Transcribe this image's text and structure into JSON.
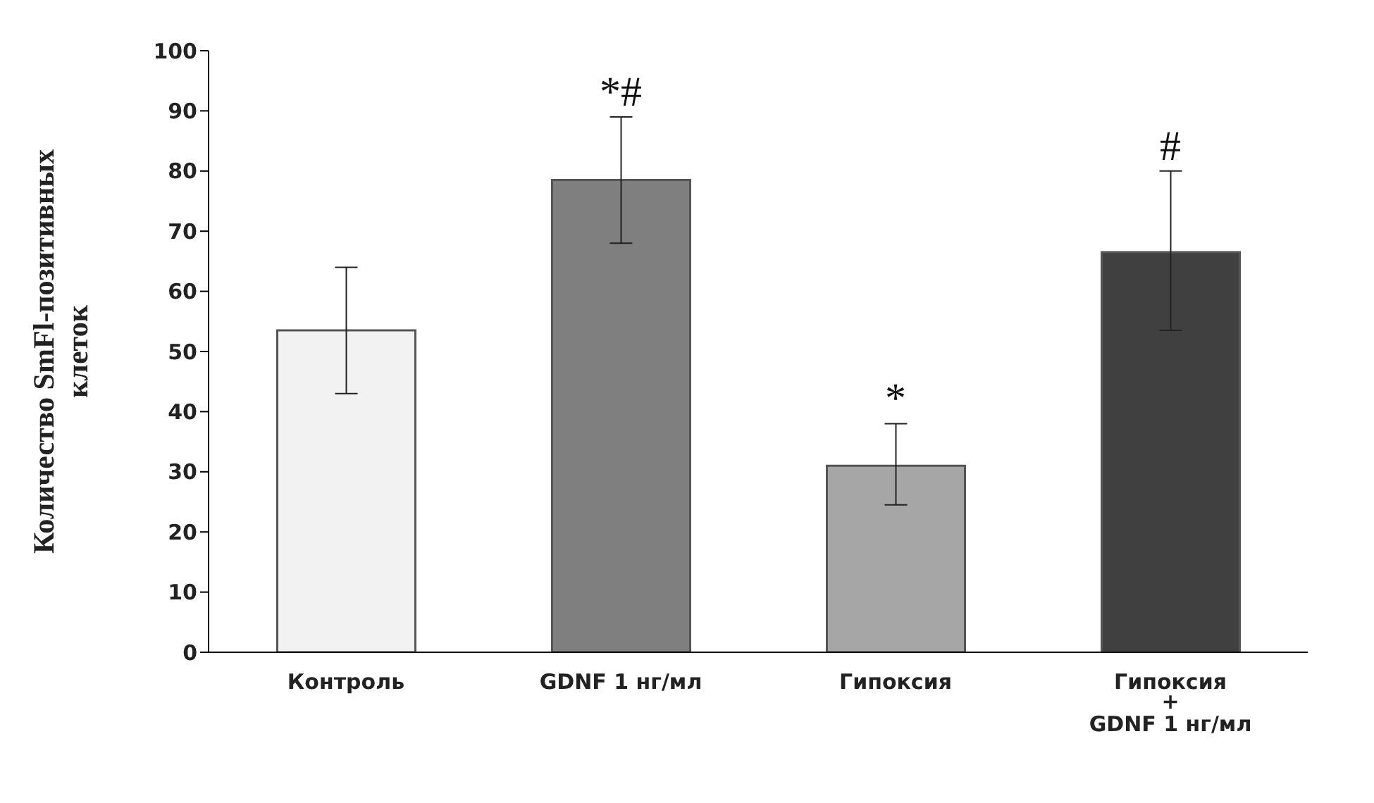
{
  "chart_data": {
    "type": "bar",
    "ylabel": "Количество SmFl-позитивных\nклеток",
    "categories": [
      "Контроль",
      "GDNF 1 нг/мл",
      "Гипоксия",
      "Гипоксия\n+\nGDNF 1 нг/мл"
    ],
    "values": [
      53.5,
      78.5,
      31,
      66.5
    ],
    "colors": [
      "#f2f2f2",
      "#7f7f7f",
      "#a6a6a6",
      "#404040"
    ],
    "errors": [
      [
        43,
        64
      ],
      [
        68,
        89
      ],
      [
        24.5,
        38
      ],
      [
        53.5,
        80
      ]
    ],
    "ylim": [
      0,
      100
    ],
    "yticks": [
      0,
      10,
      20,
      30,
      40,
      50,
      60,
      70,
      80,
      90,
      100
    ],
    "grid": false,
    "annotations": [
      {
        "text": "*#",
        "x": "GDNF 1 нг/мл",
        "y": 78.5
      },
      {
        "text": "*",
        "x": "Гипоксия",
        "y": 31
      },
      {
        "text": "#",
        "x": "Гипоксия\n+\nGDNF 1 нг/мл",
        "y": 66.5
      }
    ]
  }
}
